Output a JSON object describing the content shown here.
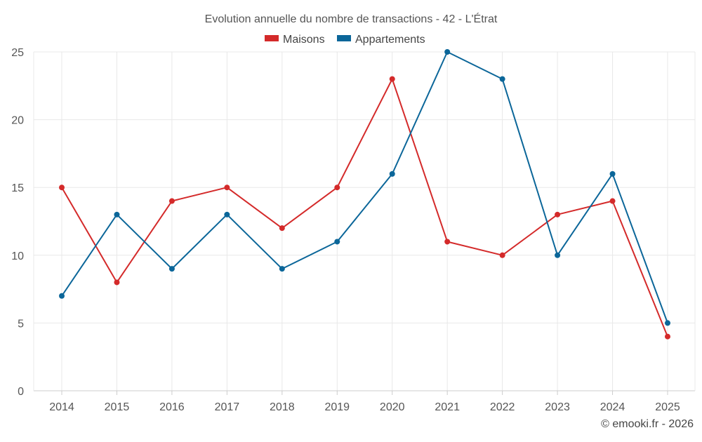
{
  "chart_data": {
    "type": "line",
    "title": "Evolution annuelle du nombre de transactions - 42 - L'Étrat",
    "categories": [
      "2014",
      "2015",
      "2016",
      "2017",
      "2018",
      "2019",
      "2020",
      "2021",
      "2022",
      "2023",
      "2024",
      "2025"
    ],
    "series": [
      {
        "name": "Maisons",
        "color": "#d42a2a",
        "values": [
          15,
          8,
          14,
          15,
          12,
          15,
          23,
          11,
          10,
          13,
          14,
          4
        ]
      },
      {
        "name": "Appartements",
        "color": "#0b6699",
        "values": [
          7,
          13,
          9,
          13,
          9,
          11,
          16,
          25,
          23,
          10,
          16,
          5
        ]
      }
    ],
    "ylim": [
      0,
      25
    ],
    "yticks": [
      0,
      5,
      10,
      15,
      20,
      25
    ],
    "xlabel": "",
    "ylabel": "",
    "grid": true,
    "legend_position": "top-center"
  },
  "credit": "© emooki.fr - 2026"
}
